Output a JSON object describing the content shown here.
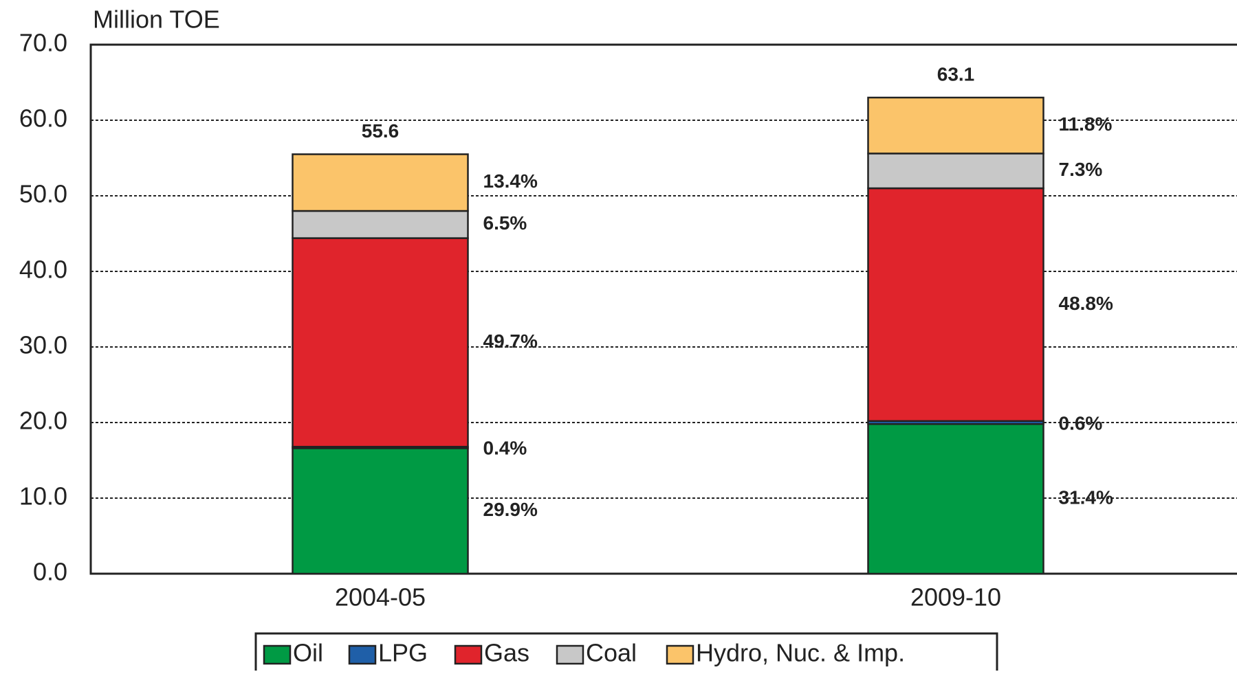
{
  "chart_data": {
    "type": "stacked_bar",
    "y_label": "Million TOE",
    "categories": [
      "2004-05",
      "2009-10"
    ],
    "series": [
      {
        "name": "Oil",
        "color": "#009a44",
        "values": [
          16.6,
          19.8
        ],
        "share_labels": [
          "29.9%",
          "31.4%"
        ]
      },
      {
        "name": "LPG",
        "color": "#1f5fa8",
        "values": [
          0.2,
          0.4
        ],
        "share_labels": [
          "0.4%",
          "0.6%"
        ]
      },
      {
        "name": "Gas",
        "color": "#e0242c",
        "values": [
          27.6,
          30.8
        ],
        "share_labels": [
          "49.7%",
          "48.8%"
        ]
      },
      {
        "name": "Coal",
        "color": "#c8c8c8",
        "values": [
          3.6,
          4.6
        ],
        "share_labels": [
          "6.5%",
          "7.3%"
        ]
      },
      {
        "name": "Hydro, Nuc. & Imp.",
        "color": "#fbc46a",
        "values": [
          7.5,
          7.4
        ],
        "share_labels": [
          "13.4%",
          "11.8%"
        ]
      }
    ],
    "totals": [
      55.6,
      63.1
    ],
    "ylim": [
      0,
      70
    ],
    "yticks": [
      {
        "value": 0,
        "label": "0.0"
      },
      {
        "value": 10,
        "label": "10.0"
      },
      {
        "value": 20,
        "label": "20.0"
      },
      {
        "value": 30,
        "label": "30.0"
      },
      {
        "value": 40,
        "label": "40.0"
      },
      {
        "value": 50,
        "label": "50.0"
      },
      {
        "value": 60,
        "label": "60.0"
      },
      {
        "value": 70,
        "label": "70.0"
      }
    ],
    "grid": true
  }
}
